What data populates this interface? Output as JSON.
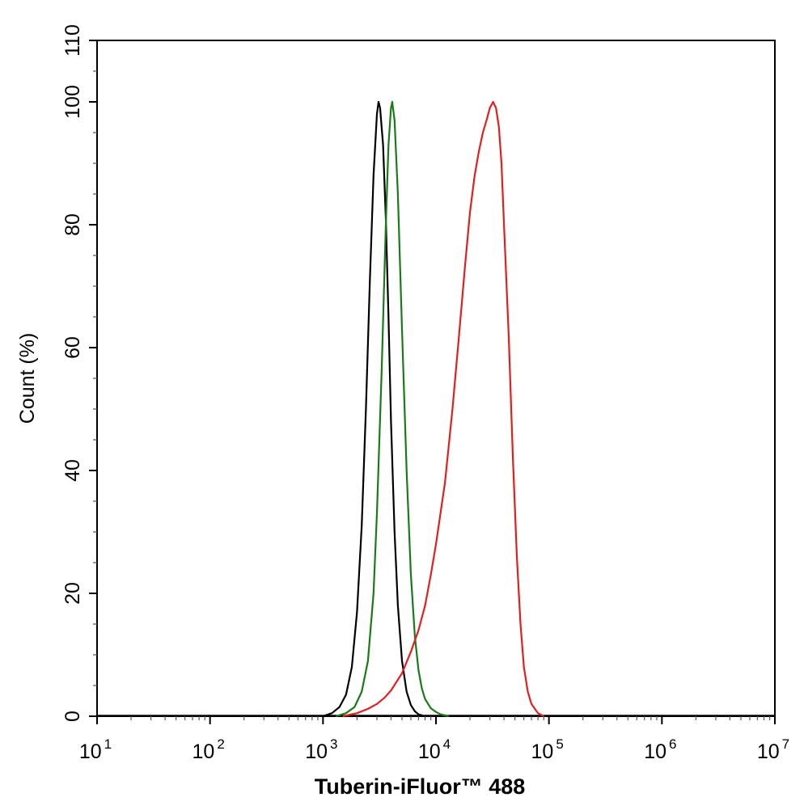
{
  "chart_data": {
    "type": "line",
    "xlabel": "Tuberin-iFluor™ 488",
    "ylabel": "Count  (%)",
    "xscale": "log",
    "xlim": [
      10,
      10000000
    ],
    "ylim": [
      0,
      110
    ],
    "x_ticks": [
      {
        "base": "10",
        "exp": "1",
        "value": 10
      },
      {
        "base": "10",
        "exp": "2",
        "value": 100
      },
      {
        "base": "10",
        "exp": "3",
        "value": 1000
      },
      {
        "base": "10",
        "exp": "4",
        "value": 10000
      },
      {
        "base": "10",
        "exp": "5",
        "value": 100000
      },
      {
        "base": "10",
        "exp": "6",
        "value": 1000000
      },
      {
        "base": "10",
        "exp": "7",
        "value": 10000000
      }
    ],
    "y_ticks": [
      "0",
      "20",
      "40",
      "60",
      "80",
      "100",
      "110"
    ],
    "grid": false,
    "series": [
      {
        "color": "#000000",
        "x": [
          1000,
          1200,
          1400,
          1600,
          1800,
          2000,
          2200,
          2400,
          2600,
          2800,
          3000,
          3100,
          3200,
          3400,
          3600,
          3800,
          4000,
          4300,
          4600,
          5000,
          5500,
          6000,
          6500,
          7000,
          8000
        ],
        "y": [
          0,
          0.5,
          1.5,
          3.5,
          8,
          17,
          31,
          50,
          71,
          88,
          98,
          100,
          99,
          93,
          81,
          65,
          48,
          30,
          18,
          9,
          4,
          1.8,
          0.8,
          0.3,
          0
        ]
      },
      {
        "color": "#1a7a1a",
        "x": [
          1300,
          1600,
          1900,
          2200,
          2500,
          2800,
          3000,
          3300,
          3600,
          3800,
          4000,
          4100,
          4300,
          4600,
          5000,
          5500,
          6000,
          6500,
          7000,
          7500,
          8000,
          9000,
          10000,
          11000,
          13000
        ],
        "y": [
          0,
          0.5,
          1.5,
          4,
          9,
          20,
          33,
          56,
          80,
          93,
          99,
          100,
          97,
          85,
          63,
          40,
          23,
          13,
          7.5,
          4.5,
          2.8,
          1.3,
          0.7,
          0.3,
          0
        ]
      },
      {
        "color": "#e02020",
        "x": [
          1500,
          2000,
          2500,
          3000,
          3500,
          4000,
          5000,
          6000,
          7000,
          8000,
          9000,
          10000,
          12000,
          14000,
          16000,
          18000,
          20000,
          22000,
          24000,
          26000,
          28000,
          30000,
          32000,
          34000,
          36000,
          38000,
          40000,
          44000,
          48000,
          52000,
          56000,
          60000,
          65000,
          70000,
          80000,
          90000
        ],
        "y": [
          0,
          0.5,
          1.2,
          2,
          3,
          4.2,
          7,
          10.5,
          14,
          18,
          23,
          28,
          38,
          50,
          62,
          73,
          82,
          88,
          92,
          95,
          97,
          99,
          100,
          99,
          96,
          90,
          80,
          62,
          42,
          26,
          15,
          8,
          4,
          2,
          0.5,
          0
        ]
      }
    ]
  }
}
